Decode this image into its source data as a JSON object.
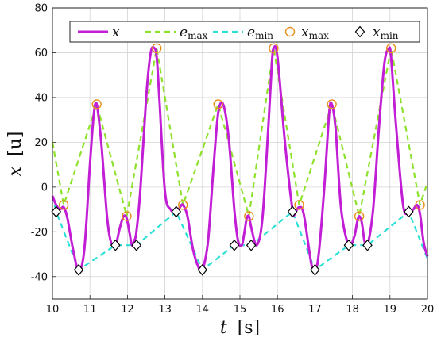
{
  "chart_data": {
    "type": "line",
    "xlabel_symbol": "t",
    "xlabel_unit": "[s]",
    "ylabel_symbol": "x",
    "ylabel_unit": "[u]",
    "xlim": [
      10,
      20
    ],
    "ylim": [
      -50,
      80
    ],
    "xticks": [
      10,
      11,
      12,
      13,
      14,
      15,
      16,
      17,
      18,
      19,
      20
    ],
    "yticks": [
      -40,
      -20,
      0,
      20,
      40,
      60,
      80
    ],
    "grid": true,
    "legend_position": "top",
    "colors": {
      "x": "#c21ed6",
      "emax": "#8ee22b",
      "emin": "#2de0d6",
      "xmax": "#e8901c",
      "xmin": "#000000"
    },
    "legend": [
      {
        "key": "x",
        "base": "x",
        "sub": ""
      },
      {
        "key": "emax",
        "base": "e",
        "sub": "max"
      },
      {
        "key": "emin",
        "base": "e",
        "sub": "min"
      },
      {
        "key": "xmax",
        "base": "x",
        "sub": "max"
      },
      {
        "key": "xmin",
        "base": "x",
        "sub": "min"
      }
    ],
    "series": [
      {
        "key": "x",
        "x": [
          10.0,
          10.1,
          10.2,
          10.3,
          10.4,
          10.55,
          10.7,
          10.85,
          11.0,
          11.1,
          11.18,
          11.3,
          11.45,
          11.55,
          11.68,
          11.8,
          11.9,
          11.98,
          12.05,
          12.12,
          12.18,
          12.24,
          12.35,
          12.5,
          12.62,
          12.72,
          12.78,
          12.85,
          13.0,
          13.15,
          13.3,
          13.4,
          13.48,
          13.6,
          13.75,
          13.9,
          14.0,
          14.15,
          14.3,
          14.42,
          14.55,
          14.7,
          14.85,
          14.95,
          15.05,
          15.12,
          15.18,
          15.24,
          15.3,
          15.45,
          15.6,
          15.75,
          15.85,
          15.9,
          16.0,
          16.2,
          16.4,
          16.48,
          16.58,
          16.7,
          16.9,
          17.0,
          17.1,
          17.25,
          17.38,
          17.45,
          17.55,
          17.7,
          17.9,
          18.05,
          18.12,
          18.18,
          18.25,
          18.32,
          18.4,
          18.55,
          18.7,
          18.85,
          18.97,
          19.03,
          19.15,
          19.35,
          19.5,
          19.62,
          19.72,
          19.8,
          19.9,
          20.0
        ],
        "y": [
          -4,
          -8,
          -10,
          -9,
          -14,
          -28,
          -37,
          -28,
          10,
          32,
          37,
          20,
          -12,
          -24,
          -26,
          -18,
          -13,
          -14,
          -20,
          -26,
          -24,
          -20,
          0,
          40,
          60,
          62,
          58,
          40,
          -2,
          -10,
          -11,
          -9,
          -8,
          -13,
          -28,
          -36,
          -37,
          -24,
          10,
          33,
          37,
          22,
          -10,
          -24,
          -26,
          -20,
          -14,
          -13,
          -18,
          -26,
          -14,
          25,
          55,
          62,
          58,
          20,
          -10,
          -11,
          -9,
          -12,
          -34,
          -37,
          -30,
          0,
          33,
          37,
          26,
          -10,
          -26,
          -22,
          -16,
          -13,
          -16,
          -24,
          -26,
          -10,
          25,
          55,
          62,
          58,
          30,
          -8,
          -11,
          -10,
          -8,
          -12,
          -25,
          -31
        ]
      },
      {
        "key": "emax",
        "x": [
          10.0,
          10.3,
          11.18,
          11.98,
          12.78,
          13.48,
          14.42,
          15.24,
          15.9,
          16.58,
          17.45,
          18.18,
          19.03,
          19.8,
          20.0
        ],
        "y": [
          20,
          -8,
          37,
          -13,
          62,
          -8,
          37,
          -13,
          62,
          -8,
          37,
          -13,
          62,
          -8,
          2
        ]
      },
      {
        "key": "emin",
        "x": [
          10.0,
          10.1,
          10.7,
          11.68,
          12.24,
          13.3,
          14.0,
          14.85,
          15.3,
          16.4,
          17.0,
          17.9,
          18.4,
          19.5,
          20.0
        ],
        "y": [
          -4,
          -11,
          -37,
          -26,
          -26,
          -11,
          -37,
          -26,
          -26,
          -11,
          -37,
          -26,
          -26,
          -11,
          -32
        ]
      },
      {
        "key": "xmax",
        "x": [
          10.3,
          11.18,
          11.98,
          12.78,
          13.48,
          14.42,
          15.24,
          15.9,
          16.58,
          17.45,
          18.18,
          19.03,
          19.8
        ],
        "y": [
          -8,
          37,
          -13,
          62,
          -8,
          37,
          -13,
          62,
          -8,
          37,
          -13,
          62,
          -8
        ]
      },
      {
        "key": "xmin",
        "x": [
          10.1,
          10.7,
          11.68,
          12.24,
          13.3,
          14.0,
          14.85,
          15.3,
          16.4,
          17.0,
          17.9,
          18.4,
          19.5
        ],
        "y": [
          -11,
          -37,
          -26,
          -26,
          -11,
          -37,
          -26,
          -26,
          -11,
          -37,
          -26,
          -26,
          -11
        ]
      }
    ]
  }
}
